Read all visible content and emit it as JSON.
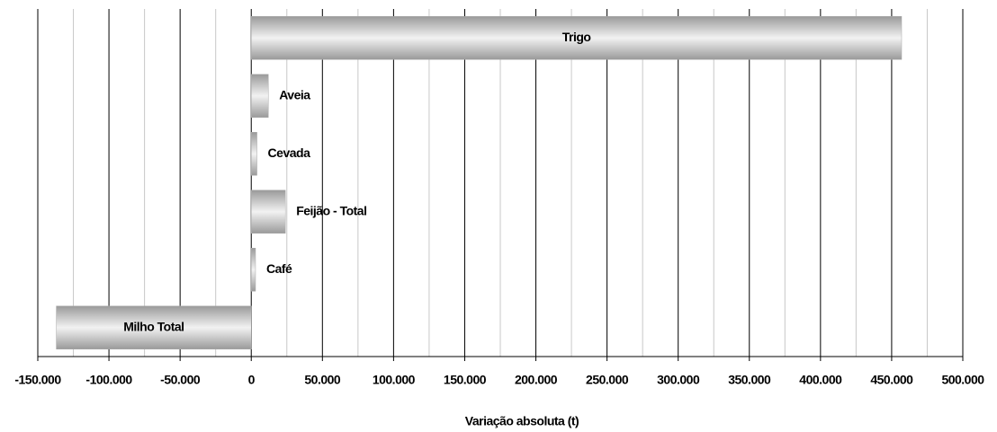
{
  "chart_data": {
    "type": "hbar",
    "categories": [
      "Trigo",
      "Aveia",
      "Cevada",
      "Feijão - Total",
      "Café",
      "Milho Total"
    ],
    "values": [
      457000,
      12000,
      4000,
      24000,
      3000,
      -137000
    ],
    "xlim": [
      -150000,
      500000
    ],
    "xticks": [
      {
        "value": -150000,
        "label": "-150.000"
      },
      {
        "value": -100000,
        "label": "-100.000"
      },
      {
        "value": -50000,
        "label": "-50.000"
      },
      0,
      {
        "value": 50000,
        "label": "50.000"
      },
      {
        "value": 100000,
        "label": "100.000"
      },
      {
        "value": 150000,
        "label": "150.000"
      },
      {
        "value": 200000,
        "label": "200.000"
      },
      {
        "value": 250000,
        "label": "250.000"
      },
      {
        "value": 300000,
        "label": "300.000"
      },
      {
        "value": 350000,
        "label": "350.000"
      },
      {
        "value": 400000,
        "label": "400.000"
      },
      {
        "value": 450000,
        "label": "450.000"
      },
      {
        "value": 500000,
        "label": "500.000"
      }
    ],
    "xlabel": "Variação absoluta (t)",
    "grid": true
  }
}
